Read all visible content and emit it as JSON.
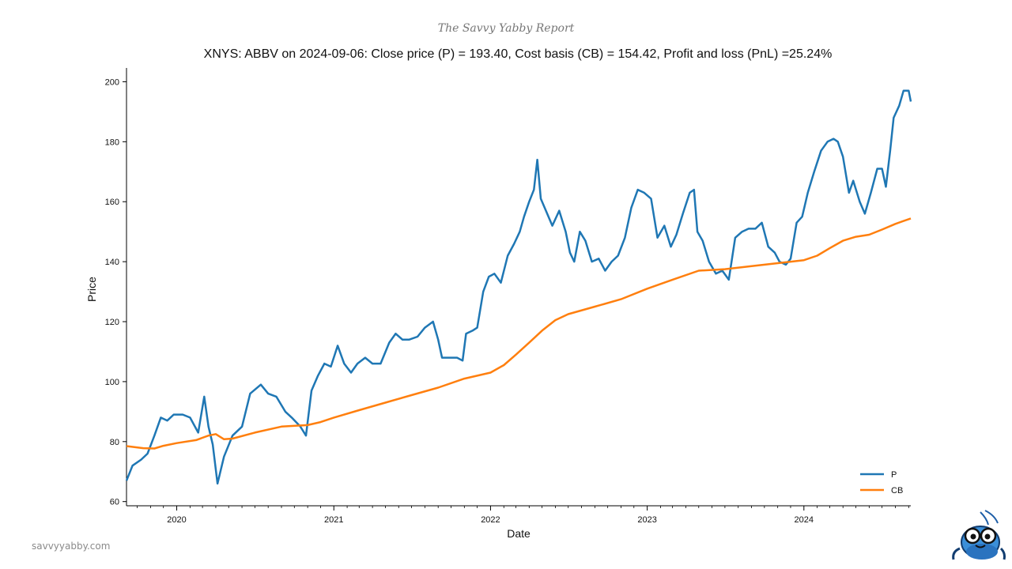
{
  "header": {
    "brand": "The Savvy Yabby Report"
  },
  "footer": {
    "url": "savvyyabby.com"
  },
  "colors": {
    "price": "#1f77b4",
    "cost_basis": "#ff7f0e",
    "axis": "#000000"
  },
  "chart_data": {
    "type": "line",
    "title": "XNYS: ABBV on 2024-09-06: Close price (P) = 193.40, Cost basis (CB) = 154.42, Profit and loss (PnL) =25.24%",
    "xlabel": "Date",
    "ylabel": "Price",
    "x_range": [
      "2019-09-06",
      "2024-09-06"
    ],
    "ylim": [
      58.6,
      204.6
    ],
    "y_ticks": [
      60,
      80,
      100,
      120,
      140,
      160,
      180,
      200
    ],
    "y_tick_labels": [
      "60",
      "80",
      "100",
      "120",
      "140",
      "160",
      "180",
      "200"
    ],
    "x_ticks": [
      "2020-01-01",
      "2021-01-01",
      "2022-01-01",
      "2023-01-01",
      "2024-01-01"
    ],
    "x_tick_labels": [
      "2020",
      "2021",
      "2022",
      "2023",
      "2024"
    ],
    "legend": {
      "position": "bottom-right",
      "entries": [
        "P",
        "CB"
      ]
    },
    "grid": false,
    "series": [
      {
        "name": "P",
        "color": "#1f77b4",
        "points": [
          [
            "2019-09-06",
            67
          ],
          [
            "2019-09-20",
            72
          ],
          [
            "2019-10-10",
            74
          ],
          [
            "2019-10-25",
            76
          ],
          [
            "2019-11-10",
            82
          ],
          [
            "2019-11-25",
            88
          ],
          [
            "2019-12-10",
            87
          ],
          [
            "2019-12-25",
            89
          ],
          [
            "2020-01-15",
            89
          ],
          [
            "2020-02-01",
            88
          ],
          [
            "2020-02-20",
            83
          ],
          [
            "2020-03-05",
            95
          ],
          [
            "2020-03-15",
            85
          ],
          [
            "2020-03-25",
            79
          ],
          [
            "2020-04-05",
            66
          ],
          [
            "2020-04-20",
            75
          ],
          [
            "2020-05-10",
            82
          ],
          [
            "2020-06-01",
            85
          ],
          [
            "2020-06-20",
            96
          ],
          [
            "2020-07-15",
            99
          ],
          [
            "2020-08-01",
            96
          ],
          [
            "2020-08-20",
            95
          ],
          [
            "2020-09-10",
            90
          ],
          [
            "2020-09-25",
            88
          ],
          [
            "2020-10-15",
            85
          ],
          [
            "2020-10-28",
            82
          ],
          [
            "2020-11-10",
            97
          ],
          [
            "2020-11-25",
            102
          ],
          [
            "2020-12-10",
            106
          ],
          [
            "2020-12-25",
            105
          ],
          [
            "2021-01-10",
            112
          ],
          [
            "2021-01-25",
            106
          ],
          [
            "2021-02-10",
            103
          ],
          [
            "2021-02-25",
            106
          ],
          [
            "2021-03-15",
            108
          ],
          [
            "2021-04-01",
            106
          ],
          [
            "2021-04-20",
            106
          ],
          [
            "2021-05-10",
            113
          ],
          [
            "2021-05-25",
            116
          ],
          [
            "2021-06-10",
            114
          ],
          [
            "2021-06-25",
            114
          ],
          [
            "2021-07-15",
            115
          ],
          [
            "2021-08-01",
            118
          ],
          [
            "2021-08-20",
            120
          ],
          [
            "2021-09-01",
            114
          ],
          [
            "2021-09-10",
            108
          ],
          [
            "2021-09-25",
            108
          ],
          [
            "2021-10-15",
            108
          ],
          [
            "2021-10-28",
            107
          ],
          [
            "2021-11-05",
            116
          ],
          [
            "2021-11-20",
            117
          ],
          [
            "2021-12-01",
            118
          ],
          [
            "2021-12-15",
            130
          ],
          [
            "2021-12-28",
            135
          ],
          [
            "2022-01-10",
            136
          ],
          [
            "2022-01-25",
            133
          ],
          [
            "2022-02-10",
            142
          ],
          [
            "2022-02-25",
            146
          ],
          [
            "2022-03-10",
            150
          ],
          [
            "2022-03-20",
            155
          ],
          [
            "2022-04-01",
            160
          ],
          [
            "2022-04-12",
            164
          ],
          [
            "2022-04-20",
            174
          ],
          [
            "2022-04-28",
            161
          ],
          [
            "2022-05-10",
            157
          ],
          [
            "2022-05-25",
            152
          ],
          [
            "2022-06-10",
            157
          ],
          [
            "2022-06-25",
            150
          ],
          [
            "2022-07-05",
            143
          ],
          [
            "2022-07-15",
            140
          ],
          [
            "2022-07-28",
            150
          ],
          [
            "2022-08-10",
            147
          ],
          [
            "2022-08-25",
            140
          ],
          [
            "2022-09-10",
            141
          ],
          [
            "2022-09-25",
            137
          ],
          [
            "2022-10-10",
            140
          ],
          [
            "2022-10-25",
            142
          ],
          [
            "2022-11-10",
            148
          ],
          [
            "2022-11-25",
            158
          ],
          [
            "2022-12-10",
            164
          ],
          [
            "2022-12-25",
            163
          ],
          [
            "2023-01-10",
            161
          ],
          [
            "2023-01-25",
            148
          ],
          [
            "2023-02-10",
            152
          ],
          [
            "2023-02-25",
            145
          ],
          [
            "2023-03-10",
            149
          ],
          [
            "2023-03-25",
            156
          ],
          [
            "2023-04-10",
            163
          ],
          [
            "2023-04-20",
            164
          ],
          [
            "2023-04-28",
            150
          ],
          [
            "2023-05-10",
            147
          ],
          [
            "2023-05-25",
            140
          ],
          [
            "2023-06-10",
            136
          ],
          [
            "2023-06-25",
            137
          ],
          [
            "2023-07-10",
            134
          ],
          [
            "2023-07-25",
            148
          ],
          [
            "2023-08-10",
            150
          ],
          [
            "2023-08-25",
            151
          ],
          [
            "2023-09-10",
            151
          ],
          [
            "2023-09-25",
            153
          ],
          [
            "2023-10-10",
            145
          ],
          [
            "2023-10-25",
            143
          ],
          [
            "2023-11-05",
            140
          ],
          [
            "2023-11-20",
            139
          ],
          [
            "2023-12-01",
            141
          ],
          [
            "2023-12-15",
            153
          ],
          [
            "2023-12-28",
            155
          ],
          [
            "2024-01-10",
            163
          ],
          [
            "2024-01-25",
            170
          ],
          [
            "2024-02-10",
            177
          ],
          [
            "2024-02-25",
            180
          ],
          [
            "2024-03-10",
            181
          ],
          [
            "2024-03-20",
            180
          ],
          [
            "2024-04-01",
            175
          ],
          [
            "2024-04-15",
            163
          ],
          [
            "2024-04-25",
            167
          ],
          [
            "2024-05-10",
            160
          ],
          [
            "2024-05-22",
            156
          ],
          [
            "2024-06-05",
            163
          ],
          [
            "2024-06-20",
            171
          ],
          [
            "2024-07-01",
            171
          ],
          [
            "2024-07-10",
            165
          ],
          [
            "2024-07-20",
            177
          ],
          [
            "2024-07-28",
            188
          ],
          [
            "2024-08-10",
            192
          ],
          [
            "2024-08-20",
            197
          ],
          [
            "2024-09-01",
            197
          ],
          [
            "2024-09-06",
            193.4
          ]
        ]
      },
      {
        "name": "CB",
        "color": "#ff7f0e",
        "points": [
          [
            "2019-09-06",
            78.5
          ],
          [
            "2019-10-15",
            77.8
          ],
          [
            "2019-11-10",
            77.7
          ],
          [
            "2019-12-01",
            78.6
          ],
          [
            "2020-01-01",
            79.5
          ],
          [
            "2020-02-15",
            80.5
          ],
          [
            "2020-03-15",
            82
          ],
          [
            "2020-04-01",
            82.5
          ],
          [
            "2020-04-20",
            80.8
          ],
          [
            "2020-05-10",
            81
          ],
          [
            "2020-07-01",
            83
          ],
          [
            "2020-09-01",
            85
          ],
          [
            "2020-11-01",
            85.5
          ],
          [
            "2020-12-01",
            86.5
          ],
          [
            "2021-01-01",
            88
          ],
          [
            "2021-03-01",
            90.5
          ],
          [
            "2021-05-01",
            93
          ],
          [
            "2021-07-01",
            95.5
          ],
          [
            "2021-09-01",
            98
          ],
          [
            "2021-11-01",
            101
          ],
          [
            "2022-01-01",
            103
          ],
          [
            "2022-02-01",
            105.5
          ],
          [
            "2022-03-01",
            109
          ],
          [
            "2022-04-01",
            113
          ],
          [
            "2022-05-01",
            117
          ],
          [
            "2022-06-01",
            120.5
          ],
          [
            "2022-07-01",
            122.5
          ],
          [
            "2022-09-01",
            125
          ],
          [
            "2022-11-01",
            127.5
          ],
          [
            "2023-01-01",
            131
          ],
          [
            "2023-03-01",
            134
          ],
          [
            "2023-05-01",
            137
          ],
          [
            "2023-07-01",
            137.5
          ],
          [
            "2023-09-01",
            138.5
          ],
          [
            "2023-11-01",
            139.5
          ],
          [
            "2024-01-01",
            140.5
          ],
          [
            "2024-02-01",
            142
          ],
          [
            "2024-03-01",
            144.5
          ],
          [
            "2024-04-01",
            147
          ],
          [
            "2024-05-01",
            148.3
          ],
          [
            "2024-06-01",
            149
          ],
          [
            "2024-07-01",
            150.7
          ],
          [
            "2024-08-01",
            152.6
          ],
          [
            "2024-09-06",
            154.42
          ]
        ]
      }
    ]
  }
}
